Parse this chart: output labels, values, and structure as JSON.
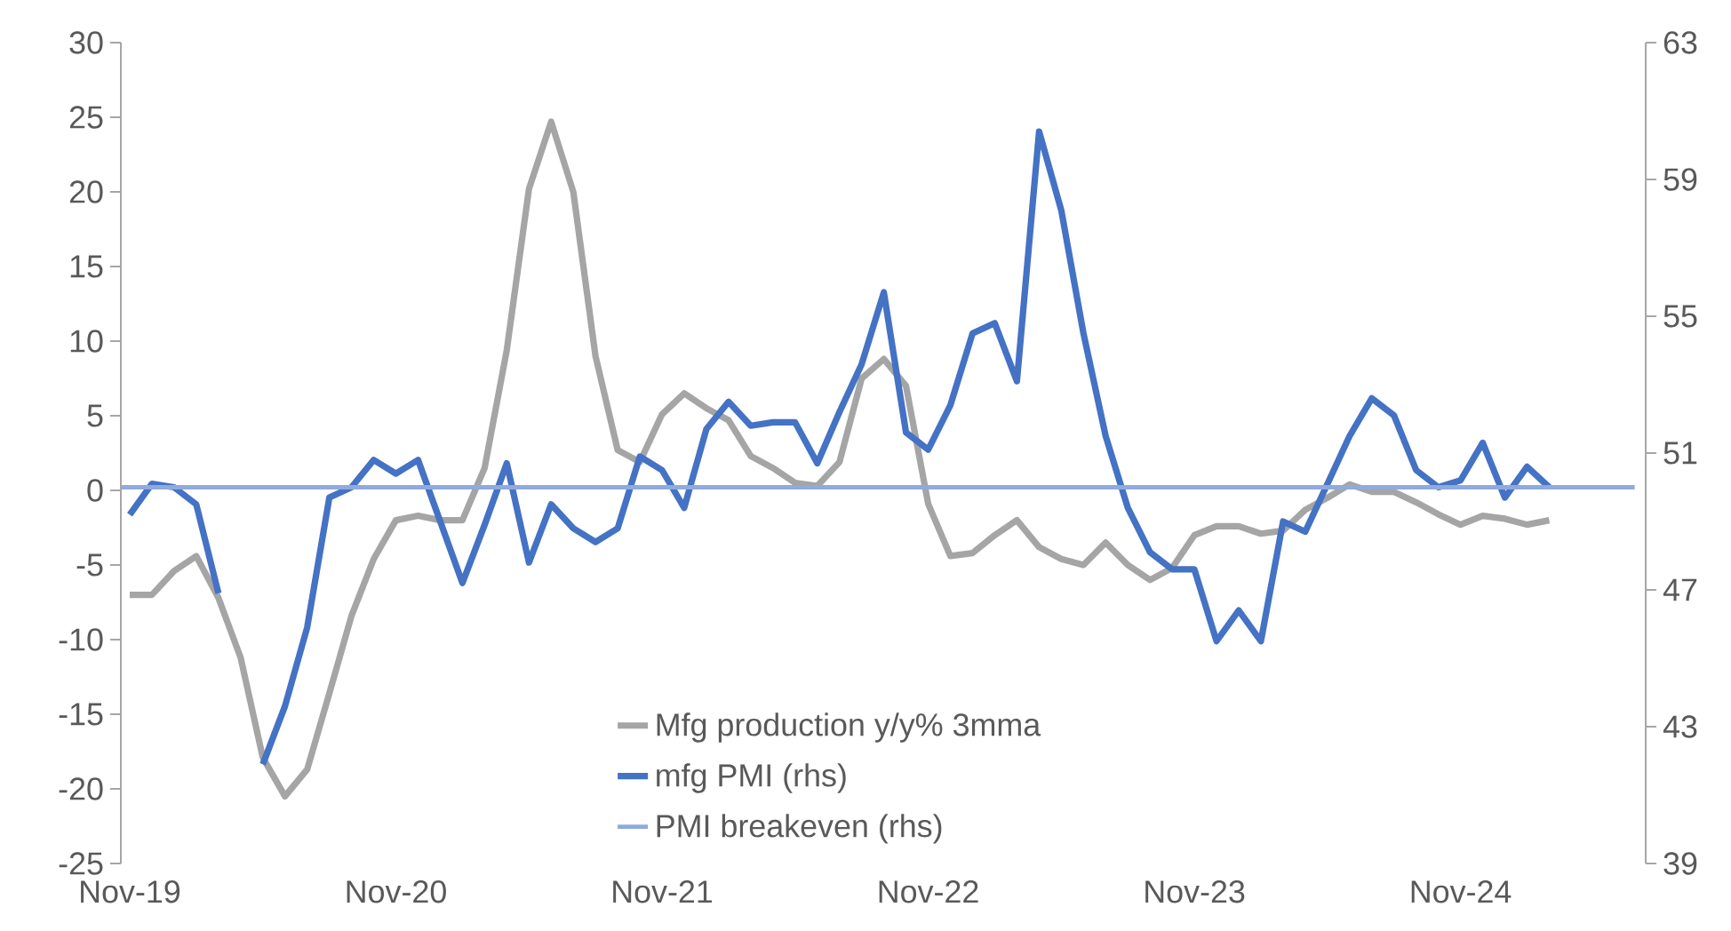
{
  "chart_data": {
    "type": "line",
    "categories": [
      "Nov-19",
      null,
      null,
      null,
      null,
      null,
      null,
      null,
      null,
      null,
      null,
      null,
      "Nov-20",
      null,
      null,
      null,
      null,
      null,
      null,
      null,
      null,
      null,
      null,
      null,
      "Nov-21",
      null,
      null,
      null,
      null,
      null,
      null,
      null,
      null,
      null,
      null,
      null,
      "Nov-22",
      null,
      null,
      null,
      null,
      null,
      null,
      null,
      null,
      null,
      null,
      null,
      "Nov-23",
      null,
      null,
      null,
      null,
      null,
      null,
      null,
      null,
      null,
      null,
      null,
      "Nov-24",
      null,
      null,
      null,
      null
    ],
    "series": [
      {
        "name": "Mfg production y/y% 3mma",
        "color": "#a5a5a5",
        "values": [
          -7,
          -7,
          -5.4,
          -4.4,
          -7.2,
          -11.2,
          -17.9,
          -20.5,
          -18.7,
          -13.6,
          -8.4,
          -4.6,
          -2,
          -1.7,
          -2,
          -2,
          1.5,
          9.4,
          20.2,
          24.7,
          20,
          9,
          2.7,
          1.9,
          5.1,
          6.5,
          5.5,
          4.7,
          2.3,
          1.5,
          0.5,
          0.3,
          1.9,
          7.5,
          8.8,
          7,
          -0.9,
          -4.4,
          -4.2,
          -3,
          -2,
          -3.8,
          -4.6,
          -5,
          -3.5,
          -5,
          -6,
          -5.2,
          -3,
          -2.4,
          -2.4,
          -2.9,
          -2.7,
          -1.3,
          -0.5,
          0.4,
          -0.1,
          -0.1,
          -0.8,
          -1.6,
          -2.3,
          -1.7,
          -1.9,
          -2.3,
          -2
        ]
      },
      {
        "name": "mfg PMI (rhs)",
        "color": "#4472c4",
        "axis": "y2",
        "values": [
          49.2,
          50.1,
          50,
          49.5,
          46.9,
          null,
          41.9,
          43.6,
          45.9,
          49.7,
          50,
          50.8,
          50.4,
          50.8,
          49,
          47.2,
          48.9,
          50.7,
          47.8,
          49.5,
          48.8,
          48.4,
          48.8,
          50.9,
          50.5,
          49.4,
          51.7,
          52.5,
          51.8,
          51.9,
          51.9,
          50.7,
          52.2,
          53.6,
          55.7,
          51.6,
          51.1,
          52.4,
          54.5,
          54.8,
          53.1,
          60.4,
          58.1,
          54.5,
          51.5,
          49.4,
          48.1,
          47.6,
          47.6,
          45.5,
          46.4,
          45.5,
          49,
          48.7,
          50.1,
          51.5,
          52.6,
          52.1,
          50.5,
          50,
          50.2,
          51.3,
          49.7,
          50.6,
          50
        ]
      }
    ],
    "ref_lines": [
      {
        "axis": "y2",
        "value": 50,
        "label": "PMI breakeven (rhs)",
        "color": "#8faadc"
      }
    ],
    "ylim": [
      -25,
      30
    ],
    "yticks": [
      -25,
      -20,
      -15,
      -10,
      -5,
      0,
      5,
      10,
      15,
      20,
      25,
      30
    ],
    "y2lim": [
      39,
      63
    ],
    "y2ticks": [
      39,
      43,
      47,
      51,
      55,
      59,
      63
    ],
    "grid": false,
    "legend": "bottom"
  }
}
